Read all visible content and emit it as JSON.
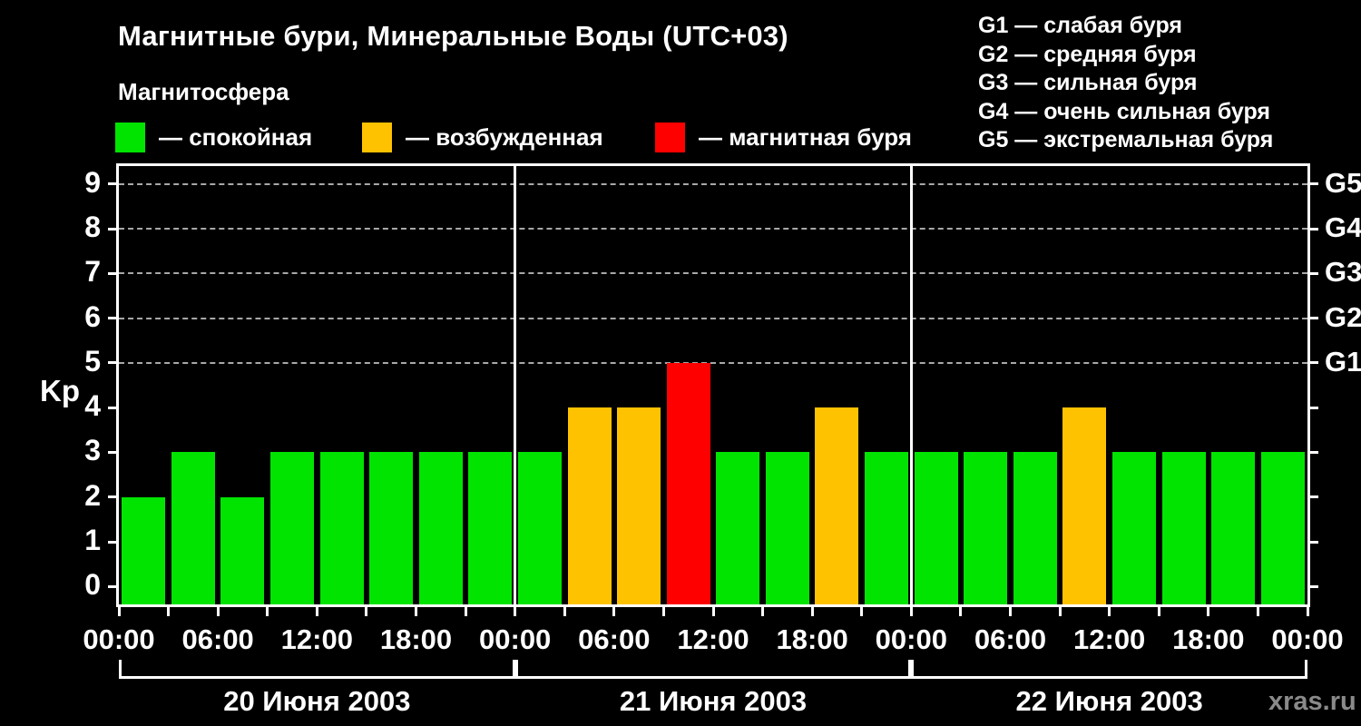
{
  "chart_data": {
    "type": "bar",
    "title": "Магнитные бури, Минеральные Воды (UTC+03)",
    "subtitle": "Магнитосфера",
    "ylabel": "Kp",
    "ylim": [
      -0.4,
      9.4
    ],
    "yticks": [
      0,
      1,
      2,
      3,
      4,
      5,
      6,
      7,
      8,
      9
    ],
    "grid_levels": [
      5,
      6,
      7,
      8,
      9
    ],
    "grid_on": true,
    "legend_position": "top",
    "g_ticks": [
      {
        "kp": 9,
        "label": "G5"
      },
      {
        "kp": 8,
        "label": "G4"
      },
      {
        "kp": 7,
        "label": "G3"
      },
      {
        "kp": 6,
        "label": "G2"
      },
      {
        "kp": 5,
        "label": "G1"
      }
    ],
    "time_labels": [
      "00:00",
      "06:00",
      "12:00",
      "18:00",
      "00:00",
      "06:00",
      "12:00",
      "18:00",
      "00:00",
      "06:00",
      "12:00",
      "18:00",
      "00:00"
    ],
    "colors": {
      "quiet": "#00e400",
      "active": "#ffc200",
      "storm": "#ff0000"
    },
    "legend": [
      {
        "state": "quiet",
        "label": "— спокойная"
      },
      {
        "state": "active",
        "label": "— возбужденная"
      },
      {
        "state": "storm",
        "label": "— магнитная буря"
      }
    ],
    "g_legend": [
      "G1 — слабая буря",
      "G2 — средняя буря",
      "G3 — сильная буря",
      "G4 — очень сильная буря",
      "G5 — экстремальная буря"
    ],
    "days": [
      {
        "date": "20 Июня 2003",
        "bars": [
          {
            "kp": 2,
            "state": "quiet"
          },
          {
            "kp": 3,
            "state": "quiet"
          },
          {
            "kp": 2,
            "state": "quiet"
          },
          {
            "kp": 3,
            "state": "quiet"
          },
          {
            "kp": 3,
            "state": "quiet"
          },
          {
            "kp": 3,
            "state": "quiet"
          },
          {
            "kp": 3,
            "state": "quiet"
          },
          {
            "kp": 3,
            "state": "quiet"
          }
        ]
      },
      {
        "date": "21 Июня 2003",
        "bars": [
          {
            "kp": 3,
            "state": "quiet"
          },
          {
            "kp": 4,
            "state": "active"
          },
          {
            "kp": 4,
            "state": "active"
          },
          {
            "kp": 5,
            "state": "storm"
          },
          {
            "kp": 3,
            "state": "quiet"
          },
          {
            "kp": 3,
            "state": "quiet"
          },
          {
            "kp": 4,
            "state": "active"
          },
          {
            "kp": 3,
            "state": "quiet"
          }
        ]
      },
      {
        "date": "22 Июня 2003",
        "bars": [
          {
            "kp": 3,
            "state": "quiet"
          },
          {
            "kp": 3,
            "state": "quiet"
          },
          {
            "kp": 3,
            "state": "quiet"
          },
          {
            "kp": 4,
            "state": "active"
          },
          {
            "kp": 3,
            "state": "quiet"
          },
          {
            "kp": 3,
            "state": "quiet"
          },
          {
            "kp": 3,
            "state": "quiet"
          },
          {
            "kp": 3,
            "state": "quiet"
          }
        ]
      }
    ],
    "watermark": "xras.ru"
  }
}
